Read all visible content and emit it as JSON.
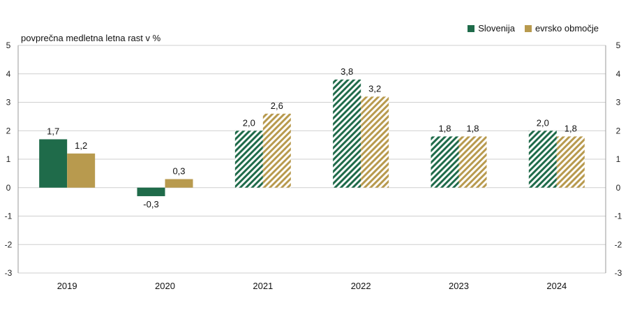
{
  "chart_data": {
    "type": "bar",
    "ylabel": "povprečna medletna letna rast v %",
    "categories": [
      "2019",
      "2020",
      "2021",
      "2022",
      "2023",
      "2024"
    ],
    "series": [
      {
        "name": "Slovenija",
        "values": [
          1.7,
          -0.3,
          2.0,
          3.8,
          1.8,
          2.0
        ],
        "labels": [
          "1,7",
          "-0,3",
          "2,0",
          "3,8",
          "1,8",
          "2,0"
        ],
        "color": "#1f6b4a"
      },
      {
        "name": "evrsko območje",
        "values": [
          1.2,
          0.3,
          2.6,
          3.2,
          1.8,
          1.8
        ],
        "labels": [
          "1,2",
          "0,3",
          "2,6",
          "3,2",
          "1,8",
          "1,8"
        ],
        "color": "#b89a4e"
      }
    ],
    "hatched_from_index": 2,
    "ylim": [
      -3,
      5
    ],
    "yticks": [
      -3,
      -2,
      -1,
      0,
      1,
      2,
      3,
      4,
      5
    ],
    "grid": true,
    "legend_position": "top-right"
  }
}
